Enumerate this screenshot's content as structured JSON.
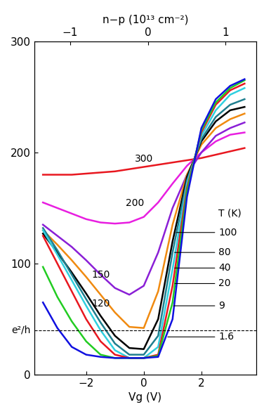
{
  "chart_data": {
    "type": "line",
    "x_label": "Vg (V)",
    "x2_label": "n−p (10¹³ cm⁻²)",
    "series_title": "T (K)",
    "x": [
      -3.5,
      -3.0,
      -2.5,
      -2.0,
      -1.5,
      -1.0,
      -0.5,
      0.0,
      0.5,
      1.0,
      1.5,
      2.0,
      2.5,
      3.0,
      3.5
    ],
    "xlim": [
      -3.8,
      3.9
    ],
    "xticks": [
      {
        "value": -2,
        "label": "−2"
      },
      0,
      2
    ],
    "x2lim": [
      -1.46,
      1.39
    ],
    "x2ticks": [
      {
        "value": -1,
        "label": "−1"
      },
      0,
      1
    ],
    "ylim": [
      0,
      300
    ],
    "yticks": [
      0,
      100,
      200,
      300
    ],
    "grid": false,
    "annotations": [
      {
        "text": "e²/h",
        "y": 40,
        "line_style": "dashed"
      }
    ],
    "series": [
      {
        "name": "300",
        "color": "#e8171f",
        "values": [
          180,
          180,
          180,
          181,
          182,
          183,
          185,
          187,
          189,
          191,
          193,
          195,
          198,
          201,
          204
        ]
      },
      {
        "name": "200",
        "color": "#e81ee0",
        "values": [
          155,
          150,
          145,
          140,
          137,
          136,
          137,
          142,
          155,
          172,
          188,
          200,
          210,
          216,
          218
        ]
      },
      {
        "name": "150",
        "color": "#8a1fd6",
        "values": [
          135,
          125,
          115,
          103,
          90,
          78,
          72,
          80,
          110,
          150,
          180,
          200,
          215,
          222,
          227
        ]
      },
      {
        "name": "120",
        "color": "#f08a10",
        "values": [
          130,
          117,
          103,
          88,
          72,
          56,
          43,
          42,
          75,
          135,
          180,
          207,
          222,
          230,
          235
        ]
      },
      {
        "name": "100",
        "color": "#000000",
        "values": [
          127,
          110,
          92,
          73,
          53,
          35,
          24,
          23,
          50,
          120,
          178,
          210,
          228,
          238,
          241
        ]
      },
      {
        "name": "80",
        "color": "#1f7f8f",
        "values": [
          132,
          112,
          90,
          68,
          47,
          28,
          18,
          18,
          35,
          110,
          175,
          212,
          232,
          243,
          248
        ]
      },
      {
        "name": "40",
        "color": "#2fd0e0",
        "values": [
          130,
          108,
          85,
          62,
          40,
          22,
          15,
          15,
          25,
          95,
          172,
          215,
          238,
          252,
          258
        ]
      },
      {
        "name": "20",
        "color": "#e8171f",
        "values": [
          125,
          100,
          75,
          50,
          30,
          18,
          15,
          15,
          18,
          80,
          168,
          218,
          243,
          256,
          262
        ]
      },
      {
        "name": "9",
        "color": "#22cc22",
        "values": [
          97,
          70,
          48,
          30,
          18,
          15,
          15,
          15,
          17,
          65,
          165,
          220,
          245,
          258,
          265
        ]
      },
      {
        "name": "1.6",
        "color": "#1010e0",
        "values": [
          65,
          42,
          25,
          18,
          16,
          15,
          15,
          15,
          16,
          50,
          160,
          222,
          248,
          260,
          266
        ]
      }
    ]
  }
}
